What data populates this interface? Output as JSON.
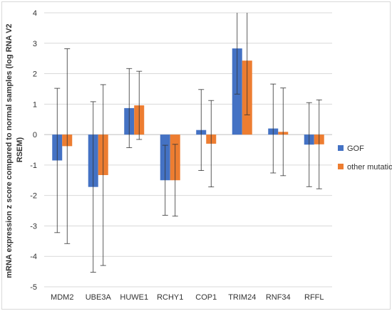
{
  "chart_data": {
    "type": "bar",
    "title": "",
    "xlabel": "",
    "ylabel_lines": [
      "mRNA expression z score compared to normal samples (log RNA V2",
      "RSEM)"
    ],
    "ylim": [
      -5,
      4
    ],
    "yticks": [
      4,
      3,
      2,
      1,
      0,
      -1,
      -2,
      -3,
      -4,
      -5
    ],
    "grid": true,
    "legend": "right",
    "categories": [
      "MDM2",
      "UBE3A",
      "HUWE1",
      "RCHY1",
      "COP1",
      "TRIM24",
      "RNF34",
      "RFFL"
    ],
    "series": [
      {
        "name": "GOF",
        "color": "#4472c4",
        "values": [
          -0.85,
          -1.72,
          0.87,
          -1.5,
          0.15,
          2.83,
          0.2,
          -0.33
        ],
        "error": [
          2.37,
          2.8,
          1.3,
          1.15,
          1.33,
          1.5,
          1.46,
          1.38
        ]
      },
      {
        "name": "other mutations",
        "color": "#ed7d31",
        "values": [
          -0.38,
          -1.33,
          0.96,
          -1.5,
          -0.3,
          2.43,
          0.09,
          -0.32
        ],
        "error": [
          3.2,
          2.97,
          1.12,
          1.18,
          1.42,
          1.78,
          1.44,
          1.46
        ]
      }
    ]
  }
}
